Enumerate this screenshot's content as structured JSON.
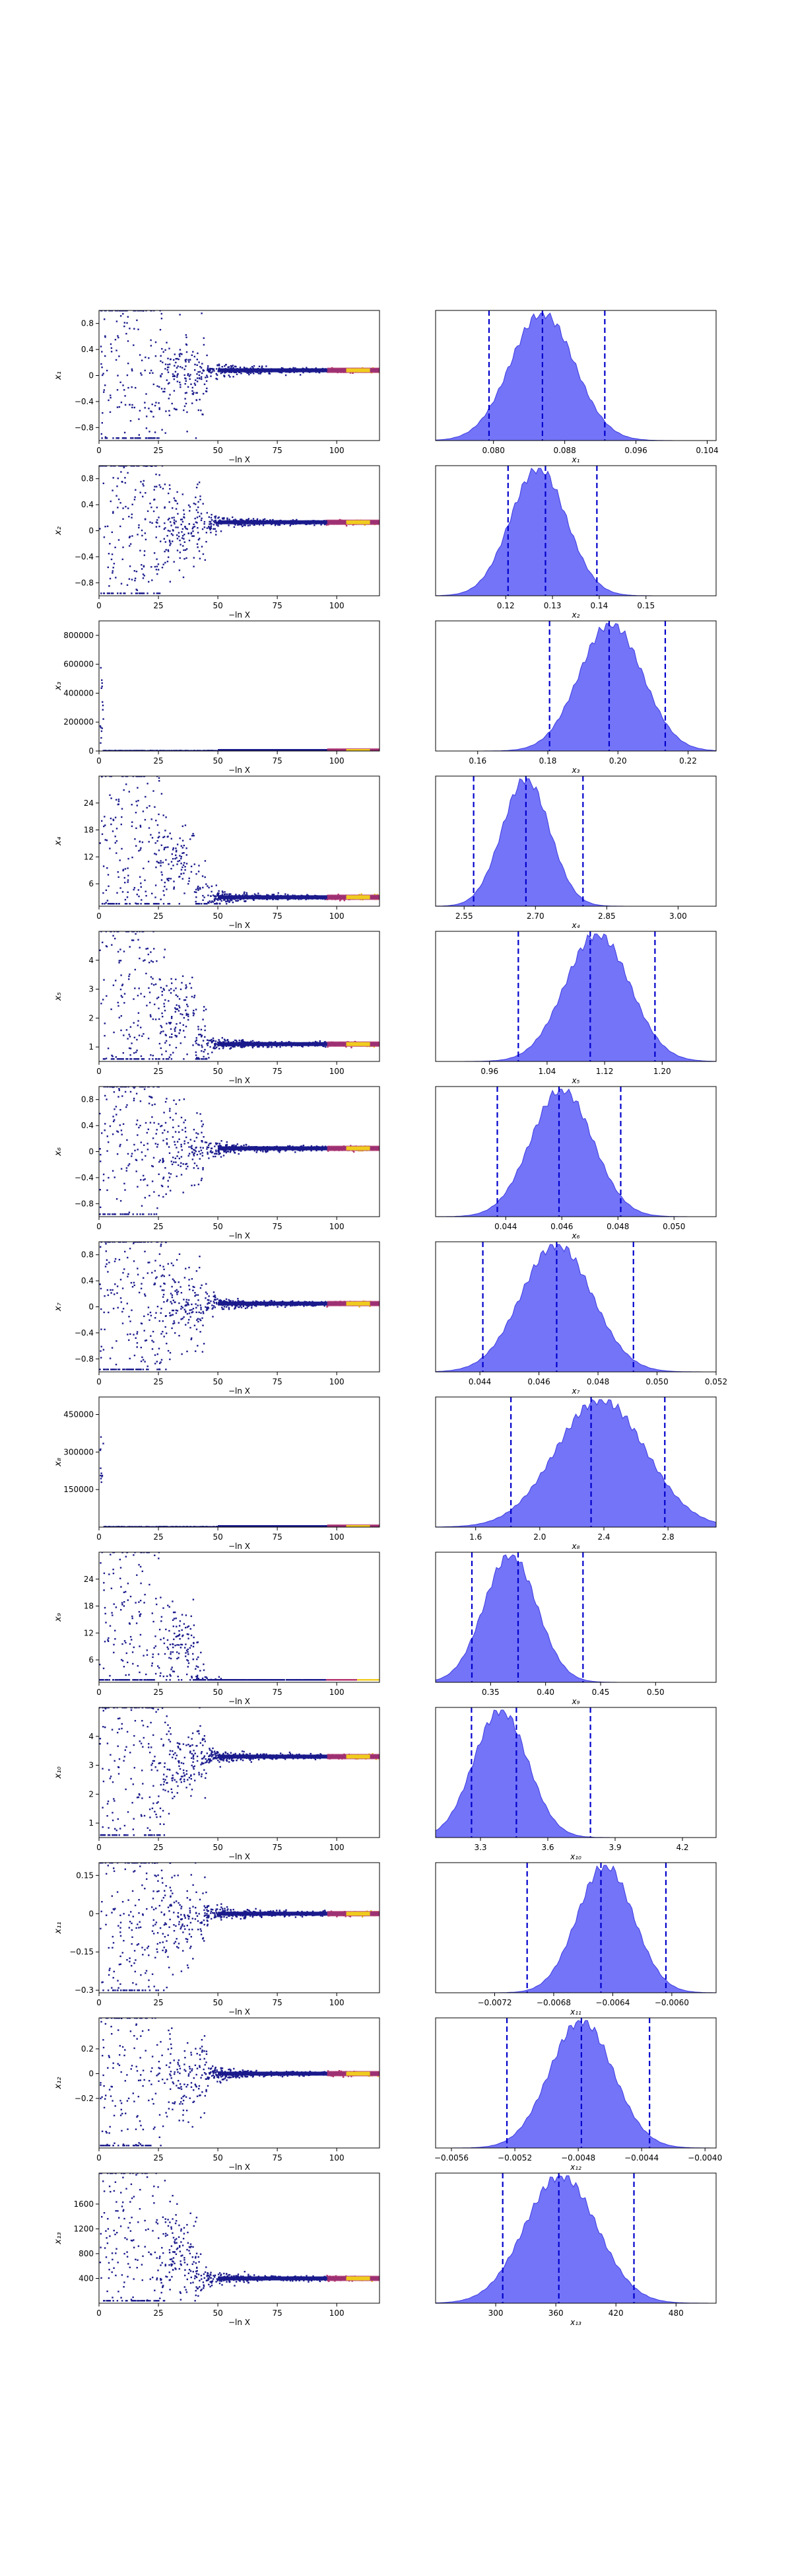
{
  "figure": {
    "trace_xlabel": "−ln X",
    "trace_xticks": [
      0,
      25,
      50,
      75,
      100
    ],
    "trace_xlim": [
      0,
      118
    ]
  },
  "colors": {
    "trace_points": "#1a1a8c",
    "trace_highlight_mid": "#b4356f",
    "trace_highlight_end": "#f0cc1e",
    "kde_fill": "#6565f7",
    "kde_edge": "#3b3be0",
    "quantile_line": "#0000cc"
  },
  "rows": [
    {
      "label": "x₁",
      "sub": "1",
      "trace": {
        "ylim": [
          -1.0,
          1.0
        ],
        "yticks": [
          -0.8,
          -0.4,
          0.0,
          0.4,
          0.8
        ],
        "final": 0.08
      },
      "hist": {
        "xlim": [
          0.0735,
          0.105
        ],
        "xticks": [
          0.08,
          0.088,
          0.096,
          0.104
        ],
        "ticklabels": [
          "0.080",
          "0.088",
          "0.096",
          "0.104"
        ],
        "lines": [
          0.0795,
          0.0855,
          0.0925
        ],
        "peak": 0.0855,
        "width": 0.0036
      }
    },
    {
      "label": "x₂",
      "sub": "2",
      "trace": {
        "ylim": [
          -1.0,
          1.0
        ],
        "yticks": [
          -0.8,
          -0.4,
          0.0,
          0.4,
          0.8
        ],
        "final": 0.13
      },
      "hist": {
        "xlim": [
          0.105,
          0.165
        ],
        "xticks": [
          0.12,
          0.13,
          0.14,
          0.15
        ],
        "ticklabels": [
          "0.12",
          "0.13",
          "0.14",
          "0.15"
        ],
        "lines": [
          0.1205,
          0.1285,
          0.1395
        ],
        "peak": 0.127,
        "width": 0.006
      }
    },
    {
      "label": "x₃",
      "sub": "3",
      "trace": {
        "ylim": [
          0,
          900000
        ],
        "yticks": [
          0,
          200000,
          400000,
          600000,
          800000
        ],
        "final": 0.19,
        "spike": true
      },
      "hist": {
        "xlim": [
          0.148,
          0.228
        ],
        "xticks": [
          0.16,
          0.18,
          0.2,
          0.22
        ],
        "ticklabels": [
          "0.16",
          "0.18",
          "0.20",
          "0.22"
        ],
        "lines": [
          0.1805,
          0.1975,
          0.2135
        ],
        "peak": 0.198,
        "width": 0.009
      }
    },
    {
      "label": "x₄",
      "sub": "4",
      "trace": {
        "ylim": [
          1,
          30
        ],
        "yticks": [
          6,
          12,
          18,
          24
        ],
        "final": 3.0
      },
      "hist": {
        "xlim": [
          2.49,
          3.08
        ],
        "xticks": [
          2.55,
          2.7,
          2.85,
          3.0
        ],
        "ticklabels": [
          "2.55",
          "2.70",
          "2.85",
          "3.00"
        ],
        "lines": [
          2.57,
          2.68,
          2.8
        ],
        "peak": 2.68,
        "width": 0.05
      }
    },
    {
      "label": "x₅",
      "sub": "5",
      "trace": {
        "ylim": [
          0.5,
          5.0
        ],
        "yticks": [
          1,
          2,
          3,
          4
        ],
        "final": 1.1
      },
      "hist": {
        "xlim": [
          0.885,
          1.275
        ],
        "xticks": [
          0.96,
          1.04,
          1.12,
          1.2
        ],
        "ticklabels": [
          "0.96",
          "1.04",
          "1.12",
          "1.20"
        ],
        "lines": [
          1.0,
          1.1,
          1.19
        ],
        "peak": 1.11,
        "width": 0.045
      }
    },
    {
      "label": "x₆",
      "sub": "6",
      "trace": {
        "ylim": [
          -1.0,
          1.0
        ],
        "yticks": [
          -0.8,
          -0.4,
          0.0,
          0.4,
          0.8
        ],
        "final": 0.05
      },
      "hist": {
        "xlim": [
          0.0415,
          0.0515
        ],
        "xticks": [
          0.044,
          0.046,
          0.048,
          0.05
        ],
        "ticklabels": [
          "0.044",
          "0.046",
          "0.048",
          "0.050"
        ],
        "lines": [
          0.0437,
          0.0459,
          0.0481
        ],
        "peak": 0.046,
        "width": 0.0011
      }
    },
    {
      "label": "x₇",
      "sub": "7",
      "trace": {
        "ylim": [
          -1.0,
          1.0
        ],
        "yticks": [
          -0.8,
          -0.4,
          0.0,
          0.4,
          0.8
        ],
        "final": 0.05
      },
      "hist": {
        "xlim": [
          0.0425,
          0.052
        ],
        "xticks": [
          0.044,
          0.046,
          0.048,
          0.05,
          0.052
        ],
        "ticklabels": [
          "0.044",
          "0.046",
          "0.048",
          "0.050",
          "0.052"
        ],
        "lines": [
          0.0441,
          0.0466,
          0.0492
        ],
        "peak": 0.0466,
        "width": 0.0012
      }
    },
    {
      "label": "x₈",
      "sub": "8",
      "trace": {
        "ylim": [
          0,
          520000
        ],
        "yticks": [
          150000,
          300000,
          450000
        ],
        "final": 2.3,
        "spike": true
      },
      "hist": {
        "xlim": [
          1.35,
          3.1
        ],
        "xticks": [
          1.6,
          2.0,
          2.4,
          2.8
        ],
        "ticklabels": [
          "1.6",
          "2.0",
          "2.4",
          "2.8"
        ],
        "lines": [
          1.82,
          2.32,
          2.78
        ],
        "peak": 2.38,
        "width": 0.28
      }
    },
    {
      "label": "x₉",
      "sub": "9",
      "trace": {
        "ylim": [
          1,
          30
        ],
        "yticks": [
          6,
          12,
          18,
          24
        ],
        "final": 0.4
      },
      "hist": {
        "xlim": [
          0.3,
          0.555
        ],
        "xticks": [
          0.35,
          0.4,
          0.45,
          0.5
        ],
        "ticklabels": [
          "0.35",
          "0.40",
          "0.45",
          "0.50"
        ],
        "lines": [
          0.333,
          0.375,
          0.434
        ],
        "peak": 0.368,
        "width": 0.024
      }
    },
    {
      "label": "x₁₀",
      "sub": "10",
      "trace": {
        "ylim": [
          0.5,
          5.0
        ],
        "yticks": [
          1,
          2,
          3,
          4
        ],
        "final": 3.3
      },
      "hist": {
        "xlim": [
          3.1,
          4.35
        ],
        "xticks": [
          3.3,
          3.6,
          3.9,
          4.2
        ],
        "ticklabels": [
          "3.3",
          "3.6",
          "3.9",
          "4.2"
        ],
        "lines": [
          3.26,
          3.46,
          3.79
        ],
        "peak": 3.39,
        "width": 0.12
      }
    },
    {
      "label": "x₁₁",
      "sub": "11",
      "trace": {
        "ylim": [
          -0.31,
          0.2
        ],
        "yticks": [
          -0.3,
          -0.15,
          0.0,
          0.15
        ],
        "final": 0.0
      },
      "hist": {
        "xlim": [
          -0.0076,
          -0.0057
        ],
        "xticks": [
          -0.0072,
          -0.0068,
          -0.0064,
          -0.006
        ],
        "ticklabels": [
          "−0.0072",
          "−0.0068",
          "−0.0064",
          "−0.0060"
        ],
        "lines": [
          -0.00698,
          -0.00648,
          -0.00604
        ],
        "peak": -0.00645,
        "width": 0.00019
      }
    },
    {
      "label": "x₁₂",
      "sub": "12",
      "trace": {
        "ylim": [
          -0.6,
          0.45
        ],
        "yticks": [
          -0.2,
          0.0,
          0.2
        ],
        "final": 0.0
      },
      "hist": {
        "xlim": [
          -0.0057,
          -0.00393
        ],
        "xticks": [
          -0.0056,
          -0.0052,
          -0.0048,
          -0.0044,
          -0.004
        ],
        "ticklabels": [
          "−0.0056",
          "−0.0052",
          "−0.0048",
          "−0.0044",
          "−0.0040"
        ],
        "lines": [
          -0.00525,
          -0.00478,
          -0.00435
        ],
        "peak": -0.00478,
        "width": 0.0002
      }
    },
    {
      "label": "x₁₃",
      "sub": "13",
      "trace": {
        "ylim": [
          0,
          2100
        ],
        "yticks": [
          400,
          800,
          1200,
          1600
        ],
        "final": 400
      },
      "hist": {
        "xlim": [
          240,
          520
        ],
        "xticks": [
          300,
          360,
          420,
          480
        ],
        "ticklabels": [
          "300",
          "360",
          "420",
          "480"
        ],
        "lines": [
          307,
          363,
          438
        ],
        "peak": 365,
        "width": 36
      }
    }
  ]
}
